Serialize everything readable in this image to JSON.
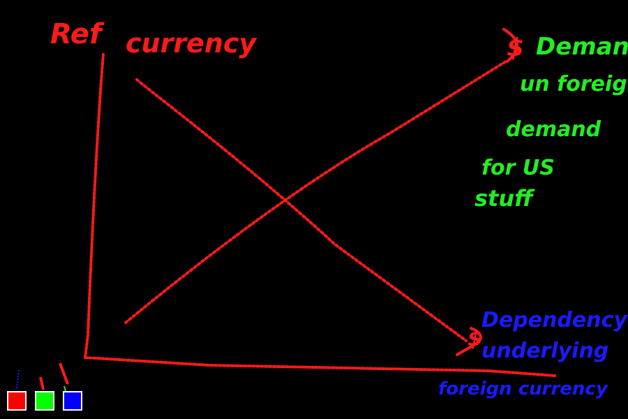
{
  "labels": {
    "ref_axis": "Ref",
    "currency_axis": "currency",
    "dollar_end": "$",
    "demand_title": "Demand",
    "demand_sub_1": "un foreign",
    "demand_sub_2": "demand",
    "demand_sub_3": "for US",
    "demand_sub_4": "stuff",
    "supply_prefix": "$",
    "supply_sub_1": "Dependency",
    "supply_sub_2": "underlying",
    "supply_sub_3": "foreign currency"
  },
  "colors": {
    "red": "#ff1a1a",
    "green": "#22ee22",
    "blue": "#1a1aff",
    "background": "#000000",
    "swatch_border": "#ffffff"
  },
  "palette": [
    {
      "name": "red",
      "color": "#ff0000"
    },
    {
      "name": "green",
      "color": "#00ff00"
    },
    {
      "name": "blue",
      "color": "#0000ff"
    }
  ]
}
